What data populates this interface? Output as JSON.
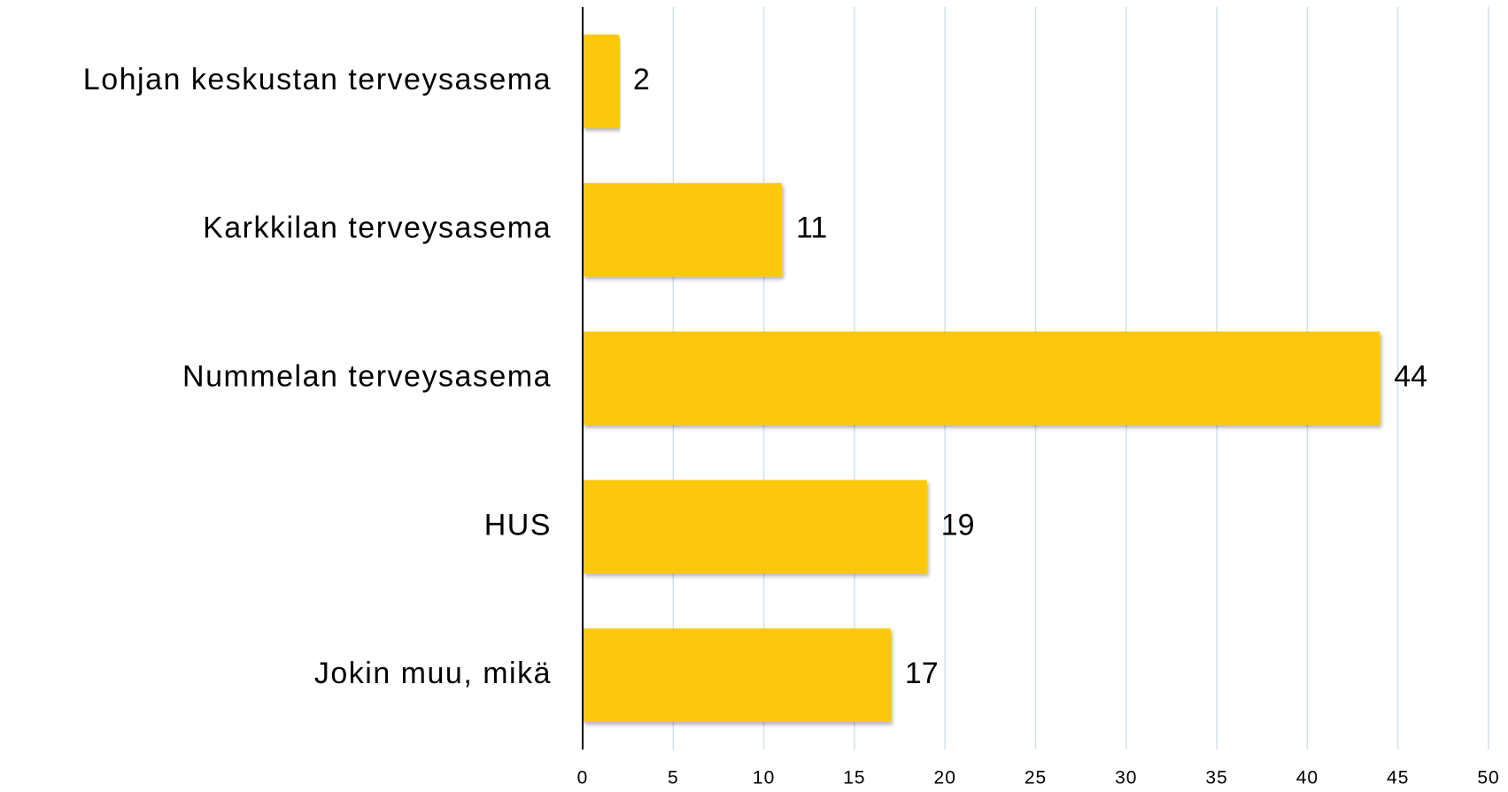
{
  "chart_data": {
    "type": "bar",
    "orientation": "horizontal",
    "categories": [
      "Lohjan keskustan terveysasema",
      "Karkkilan terveysasema",
      "Nummelan terveysasema",
      "HUS",
      "Jokin muu, mikä"
    ],
    "values": [
      2,
      11,
      44,
      19,
      17
    ],
    "color": "#fcc80a",
    "xlim": [
      0,
      50
    ],
    "xticks": [
      0,
      5,
      10,
      15,
      20,
      25,
      30,
      35,
      40,
      45,
      50
    ],
    "grid": true
  }
}
